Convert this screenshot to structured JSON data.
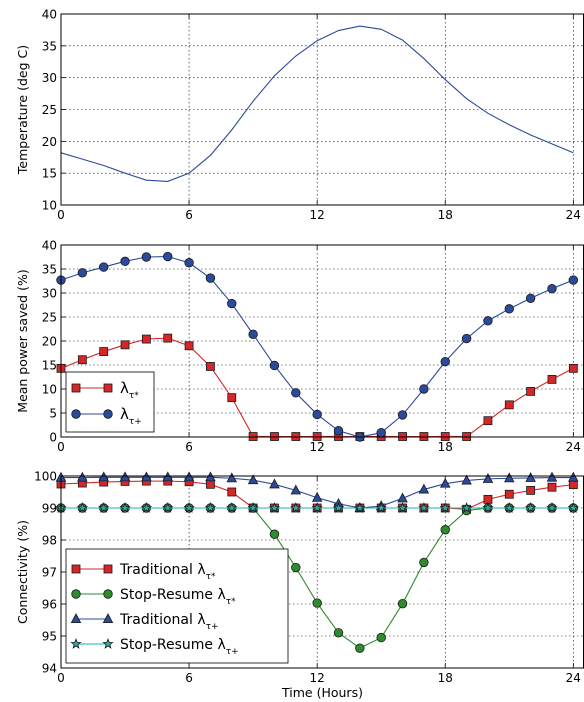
{
  "chart_data": [
    {
      "type": "line",
      "xlabel": "",
      "ylabel": "Temperature (deg C)",
      "xlim": [
        0,
        24.5
      ],
      "ylim": [
        10,
        40
      ],
      "xticks": [
        0,
        6,
        12,
        18,
        24
      ],
      "yticks": [
        10,
        15,
        20,
        25,
        30,
        35,
        40
      ],
      "grid": true,
      "legend": "none",
      "series": [
        {
          "color": "#2b4a9a",
          "marker": "none",
          "x": [
            0,
            1,
            2,
            3,
            4,
            5,
            6,
            7,
            8,
            9,
            10,
            11,
            12,
            13,
            14,
            15,
            16,
            17,
            18,
            19,
            20,
            21,
            22,
            23,
            24
          ],
          "y": [
            18.2,
            17.2,
            16.2,
            15.0,
            13.9,
            13.7,
            15.0,
            17.8,
            21.8,
            26.3,
            30.3,
            33.4,
            35.8,
            37.4,
            38.1,
            37.6,
            35.9,
            33.0,
            29.7,
            26.7,
            24.4,
            22.6,
            21.0,
            19.6,
            18.2
          ]
        }
      ]
    },
    {
      "type": "line",
      "xlabel": "",
      "ylabel": "Mean power saved (%)",
      "xlim": [
        0,
        24.5
      ],
      "ylim": [
        0,
        40
      ],
      "xticks": [
        0,
        6,
        12,
        18,
        24
      ],
      "yticks": [
        0,
        5,
        10,
        15,
        20,
        25,
        30,
        35,
        40
      ],
      "grid": true,
      "legend": "bottom-left",
      "series": [
        {
          "name": "λ_{τ*}",
          "color": "#d62728",
          "marker": "square",
          "x": [
            0,
            1,
            2,
            3,
            4,
            5,
            6,
            7,
            8,
            9,
            10,
            11,
            12,
            13,
            14,
            15,
            16,
            17,
            18,
            19,
            20,
            21,
            22,
            23,
            24
          ],
          "y": [
            14.3,
            16.1,
            17.8,
            19.2,
            20.4,
            20.6,
            19.0,
            14.7,
            8.2,
            0.1,
            0.1,
            0.1,
            0.1,
            0.1,
            0.1,
            0.1,
            0.1,
            0.1,
            0.1,
            0.1,
            3.4,
            6.7,
            9.5,
            12.0,
            14.3
          ]
        },
        {
          "name": "λ_{τ+}",
          "color": "#2b4a9a",
          "marker": "circle",
          "x": [
            0,
            1,
            2,
            3,
            4,
            5,
            6,
            7,
            8,
            9,
            10,
            11,
            12,
            13,
            14,
            15,
            16,
            17,
            18,
            19,
            20,
            21,
            22,
            23,
            24
          ],
          "y": [
            32.7,
            34.2,
            35.4,
            36.6,
            37.5,
            37.6,
            36.3,
            33.1,
            27.8,
            21.4,
            14.9,
            9.2,
            4.7,
            1.3,
            0.0,
            0.9,
            4.6,
            10.0,
            15.7,
            20.5,
            24.2,
            26.7,
            28.9,
            30.9,
            32.7
          ]
        }
      ]
    },
    {
      "type": "line",
      "xlabel": "Time (Hours)",
      "ylabel": "Connectivity (%)",
      "xlim": [
        0,
        24.5
      ],
      "ylim": [
        94,
        100
      ],
      "xticks": [
        0,
        6,
        12,
        18,
        24
      ],
      "yticks": [
        94,
        95,
        96,
        97,
        98,
        99,
        100
      ],
      "grid": true,
      "legend": "bottom-left",
      "series": [
        {
          "name": "Traditional λ_{τ*}",
          "color": "#d62728",
          "marker": "square",
          "x": [
            0,
            1,
            2,
            3,
            4,
            5,
            6,
            7,
            8,
            9,
            10,
            11,
            12,
            13,
            14,
            15,
            16,
            17,
            18,
            19,
            20,
            21,
            22,
            23,
            24
          ],
          "y": [
            99.75,
            99.78,
            99.81,
            99.83,
            99.84,
            99.84,
            99.82,
            99.74,
            99.5,
            99.0,
            99.0,
            99.0,
            99.0,
            99.0,
            99.0,
            99.0,
            99.0,
            99.0,
            99.0,
            98.96,
            99.27,
            99.43,
            99.55,
            99.65,
            99.73
          ]
        },
        {
          "name": "Stop-Resume λ_{τ*}",
          "color": "#2e8b2e",
          "marker": "circle",
          "x": [
            0,
            1,
            2,
            3,
            4,
            5,
            6,
            7,
            8,
            9,
            10,
            11,
            12,
            13,
            14,
            15,
            16,
            17,
            18,
            19,
            20,
            21,
            22,
            23,
            24
          ],
          "y": [
            99.0,
            99.0,
            99.0,
            99.0,
            99.0,
            99.0,
            99.0,
            99.0,
            99.0,
            99.0,
            98.18,
            97.14,
            96.03,
            95.1,
            94.62,
            94.95,
            96.01,
            97.3,
            98.32,
            98.92,
            99.0,
            99.0,
            99.0,
            99.0,
            99.0
          ]
        },
        {
          "name": "Traditional λ_{τ+}",
          "color": "#2b4a9a",
          "marker": "triangle",
          "x": [
            0,
            1,
            2,
            3,
            4,
            5,
            6,
            7,
            8,
            9,
            10,
            11,
            12,
            13,
            14,
            15,
            16,
            17,
            18,
            19,
            20,
            21,
            22,
            23,
            24
          ],
          "y": [
            99.95,
            99.95,
            99.96,
            99.96,
            99.96,
            99.96,
            99.96,
            99.96,
            99.93,
            99.87,
            99.74,
            99.55,
            99.32,
            99.13,
            99.0,
            99.06,
            99.3,
            99.58,
            99.76,
            99.86,
            99.91,
            99.93,
            99.94,
            99.95,
            99.95
          ]
        },
        {
          "name": "Stop-Resume λ_{τ+}",
          "color": "#20b2aa",
          "marker": "star",
          "x": [
            0,
            1,
            2,
            3,
            4,
            5,
            6,
            7,
            8,
            9,
            10,
            11,
            12,
            13,
            14,
            15,
            16,
            17,
            18,
            19,
            20,
            21,
            22,
            23,
            24
          ],
          "y": [
            99.0,
            99.0,
            99.0,
            99.0,
            99.0,
            99.0,
            99.0,
            99.0,
            99.0,
            99.0,
            99.0,
            99.0,
            99.0,
            99.0,
            99.0,
            99.0,
            99.0,
            99.0,
            99.0,
            99.0,
            99.0,
            99.0,
            99.0,
            99.0,
            99.0
          ]
        }
      ]
    }
  ]
}
